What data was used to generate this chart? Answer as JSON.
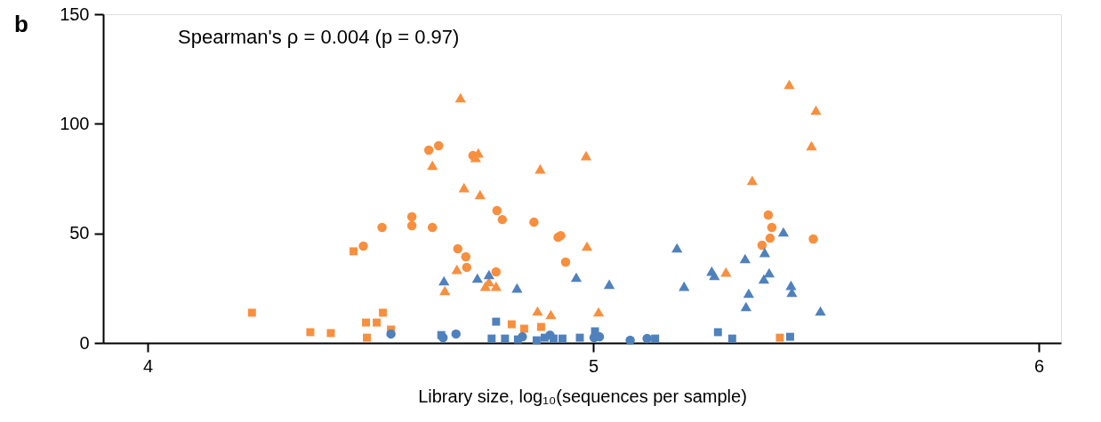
{
  "chart_data": {
    "type": "scatter",
    "xlabel": "Library size, log₁₀(sequences per sample)",
    "annotations": [
      "b",
      "Spearman's ρ = 0.004 (p = 0.97)"
    ],
    "xlim": [
      3.9,
      6.05
    ],
    "xticks": [
      4,
      5,
      6
    ],
    "ylim": [
      0,
      150
    ],
    "yticks": [
      0,
      50,
      100,
      150
    ],
    "grid": false,
    "legend": false,
    "series": [
      {
        "color": "#f78f3f",
        "marker": "circle",
        "x": [
          4.484,
          4.526,
          4.593,
          4.593,
          4.631,
          4.653,
          4.639,
          4.696,
          4.714,
          4.716,
          4.73,
          4.784,
          4.796,
          4.782,
          4.867,
          4.921,
          4.927,
          4.938,
          5.379,
          5.393,
          5.401,
          5.397,
          5.494
        ],
        "values": [
          44.2,
          52.7,
          57.6,
          53.5,
          88.0,
          90.0,
          52.7,
          43.0,
          39.3,
          34.5,
          85.5,
          60.4,
          56.3,
          32.4,
          55.1,
          48.2,
          49.0,
          36.9,
          44.6,
          58.4,
          52.7,
          47.8,
          47.4
        ]
      },
      {
        "color": "#f78f3f",
        "marker": "triangle",
        "x": [
          4.702,
          4.639,
          4.71,
          4.746,
          4.742,
          4.736,
          4.694,
          4.667,
          4.766,
          4.758,
          4.782,
          4.881,
          4.984,
          4.986,
          4.875,
          4.905,
          5.012,
          5.357,
          5.298,
          5.44,
          5.5,
          5.49
        ],
        "values": [
          111.9,
          81.1,
          70.9,
          67.7,
          86.7,
          84.7,
          33.6,
          23.9,
          28.0,
          25.9,
          25.9,
          79.4,
          85.5,
          44.2,
          14.6,
          13.0,
          14.2,
          74.2,
          32.4,
          118.0,
          106.2,
          90.0
        ]
      },
      {
        "color": "#f78f3f",
        "marker": "square",
        "x": [
          4.234,
          4.365,
          4.411,
          4.462,
          4.49,
          4.514,
          4.528,
          4.492,
          4.546,
          4.817,
          4.845,
          4.883,
          5.419
        ],
        "values": [
          13.8,
          4.9,
          4.5,
          41.8,
          9.3,
          9.3,
          13.8,
          2.4,
          6.1,
          8.5,
          6.5,
          7.3,
          2.4
        ]
      },
      {
        "color": "#4f81bd",
        "marker": "circle",
        "x": [
          4.546,
          4.663,
          4.692,
          4.841,
          4.903,
          5.002,
          5.014,
          5.083,
          5.121
        ],
        "values": [
          4.1,
          2.4,
          4.1,
          2.8,
          3.6,
          2.4,
          2.8,
          1.2,
          2.0
        ]
      },
      {
        "color": "#4f81bd",
        "marker": "square",
        "x": [
          4.659,
          4.772,
          4.782,
          4.802,
          4.831,
          4.873,
          4.891,
          4.911,
          4.931,
          4.97,
          5.004,
          5.139,
          5.28,
          5.312,
          5.442
        ],
        "values": [
          3.6,
          2.0,
          9.7,
          2.0,
          1.6,
          1.2,
          2.4,
          2.0,
          2.0,
          2.4,
          5.3,
          2.0,
          4.9,
          2.0,
          2.8
        ]
      },
      {
        "color": "#4f81bd",
        "marker": "triangle",
        "x": [
          4.665,
          4.74,
          4.766,
          4.829,
          4.962,
          5.036,
          5.188,
          5.204,
          5.266,
          5.272,
          5.341,
          5.349,
          5.343,
          5.385,
          5.395,
          5.383,
          5.427,
          5.444,
          5.446,
          5.51
        ],
        "values": [
          28.4,
          29.6,
          31.2,
          25.1,
          30.0,
          26.8,
          43.4,
          25.9,
          32.8,
          30.8,
          38.5,
          22.7,
          16.6,
          41.3,
          32.0,
          29.2,
          50.7,
          26.3,
          23.1,
          14.6
        ]
      }
    ]
  }
}
